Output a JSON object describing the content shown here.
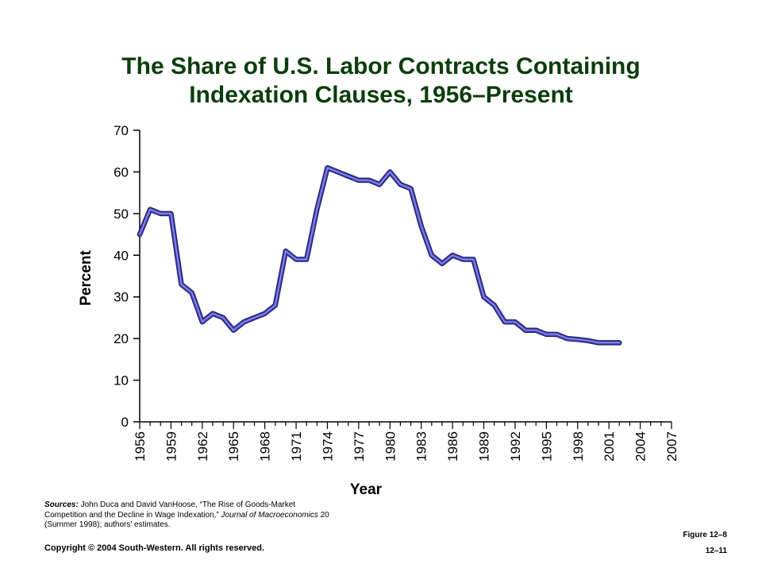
{
  "title_lines": [
    "The Share of U.S. Labor Contracts Containing",
    "Indexation Clauses, 1956–Present"
  ],
  "chart_data": {
    "type": "line",
    "xlabel": "Year",
    "ylabel": "Percent",
    "xlim": [
      1956,
      2007
    ],
    "ylim": [
      0,
      70
    ],
    "x_ticks": [
      "1956",
      "1959",
      "1962",
      "1965",
      "1968",
      "1971",
      "1974",
      "1977",
      "1980",
      "1983",
      "1986",
      "1989",
      "1992",
      "1995",
      "1998",
      "2001",
      "2004",
      "2007"
    ],
    "y_ticks": [
      "0",
      "10",
      "20",
      "30",
      "40",
      "50",
      "60",
      "70"
    ],
    "grid": false,
    "line_color": "#4b4bbf",
    "series": [
      {
        "x": [
          1956,
          1957,
          1958,
          1959,
          1960,
          1961,
          1962,
          1963,
          1964,
          1965,
          1966,
          1967,
          1968,
          1969,
          1970,
          1971,
          1972,
          1973,
          1974,
          1975,
          1976,
          1977,
          1978,
          1979,
          1980,
          1981,
          1982,
          1983,
          1984,
          1985,
          1986,
          1987,
          1988,
          1989,
          1990,
          1991,
          1992,
          1993,
          1994,
          1995,
          1996,
          1997,
          1998,
          1999,
          2000,
          2001,
          2002
        ],
        "y": [
          45,
          51,
          50,
          50,
          33,
          31,
          24,
          26,
          25,
          22,
          24,
          25,
          26,
          28,
          41,
          39,
          39,
          51,
          61,
          60,
          59,
          58,
          58,
          57,
          60,
          57,
          56,
          47,
          40,
          38,
          40,
          39,
          39,
          30,
          28,
          24,
          24,
          22,
          22,
          21,
          21,
          20,
          19.8,
          19.5,
          19,
          19,
          19
        ]
      }
    ]
  },
  "sources": {
    "label": "Sources:",
    "text1": " John Duca and David VanHoose, “The Rise of Goods-Market Competition and the Decline in Wage Indexation,” ",
    "journal": "Journal of Macroeconomics",
    "text2": " 20 (Summer 1998); authors’ estimates."
  },
  "copyright": "Copyright © 2004 South-Western. All rights reserved.",
  "figure_label": "Figure 12–8",
  "page_label": "12–11"
}
